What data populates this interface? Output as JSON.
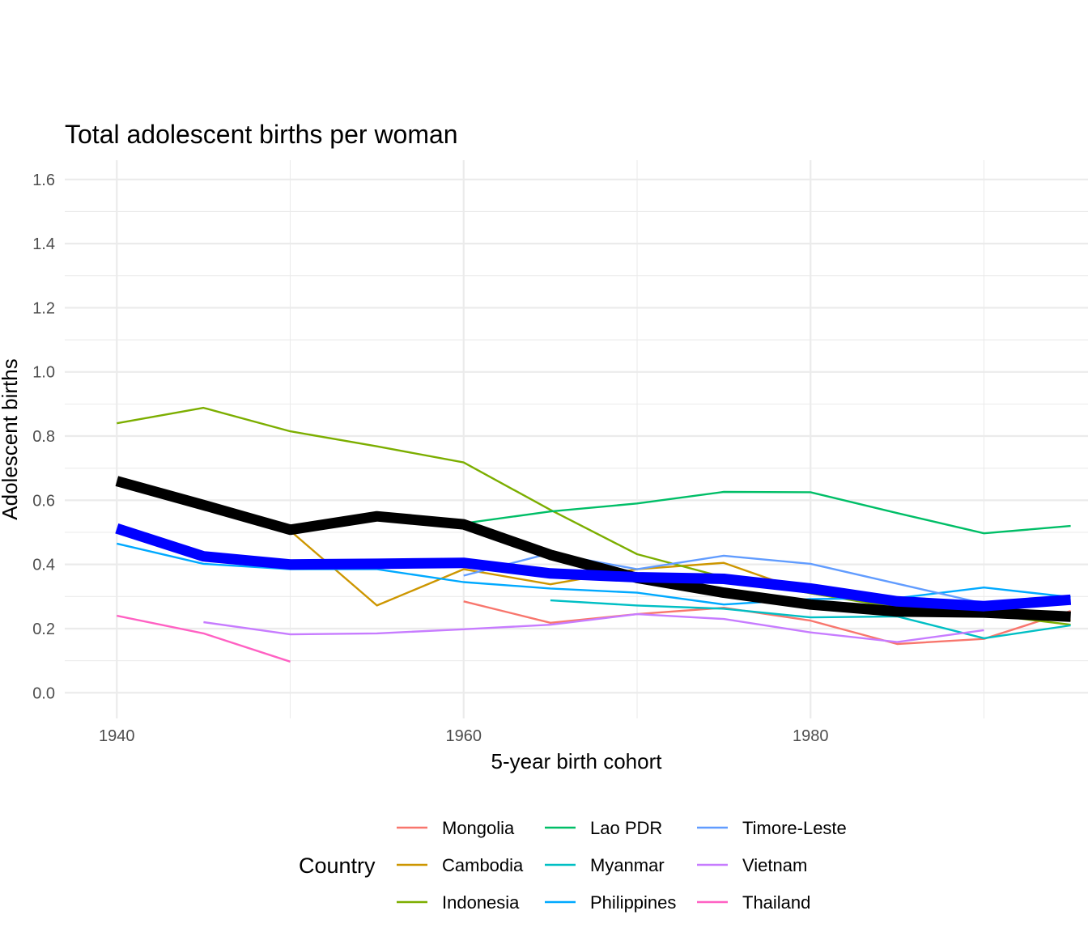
{
  "chart_data": {
    "type": "line",
    "title": "Total adolescent births per woman",
    "xlabel": "5-year birth cohort",
    "ylabel": "Adolescent births",
    "xlim": [
      1937,
      1996
    ],
    "ylim": [
      -0.08,
      1.66
    ],
    "x_ticks": [
      1940,
      1960,
      1980
    ],
    "y_ticks": [
      0.0,
      0.2,
      0.4,
      0.6,
      0.8,
      1.0,
      1.2,
      1.4,
      1.6
    ],
    "y_tick_labels": [
      "0.0",
      "0.2",
      "0.4",
      "0.6",
      "0.8",
      "1.0",
      "1.2",
      "1.4",
      "1.6"
    ],
    "grid": true,
    "legend": {
      "title": "Country",
      "position": "bottom"
    },
    "series": [
      {
        "name": "Mongolia",
        "color": "#F8766D",
        "x": [
          1960,
          1965,
          1970,
          1975,
          1980,
          1985,
          1990,
          1995
        ],
        "values": [
          0.285,
          0.218,
          0.245,
          0.265,
          0.225,
          0.152,
          0.168,
          0.255
        ]
      },
      {
        "name": "Cambodia",
        "color": "#CD9600",
        "x": [
          1950,
          1955,
          1960,
          1965,
          1970,
          1975,
          1980,
          1985,
          1990,
          1995
        ],
        "values": [
          0.505,
          0.272,
          0.385,
          0.338,
          0.385,
          0.405,
          0.31,
          0.268,
          0.245,
          0.225
        ]
      },
      {
        "name": "Indonesia",
        "color": "#7CAE00",
        "x": [
          1940,
          1945,
          1950,
          1955,
          1960,
          1965,
          1970,
          1975,
          1980,
          1985,
          1990,
          1995
        ],
        "values": [
          0.84,
          0.888,
          0.815,
          0.768,
          0.718,
          0.57,
          0.432,
          0.36,
          0.31,
          0.265,
          0.245,
          0.212
        ]
      },
      {
        "name": "Lao PDR",
        "color": "#00BE67",
        "x": [
          1960,
          1965,
          1970,
          1975,
          1980,
          1985,
          1990,
          1995
        ],
        "values": [
          0.528,
          0.565,
          0.59,
          0.626,
          0.625,
          0.56,
          0.497,
          0.52
        ]
      },
      {
        "name": "Myanmar",
        "color": "#00BFC4",
        "x": [
          1965,
          1970,
          1975,
          1980,
          1985,
          1990,
          1995
        ],
        "values": [
          0.288,
          0.272,
          0.262,
          0.235,
          0.238,
          0.17,
          0.21
        ]
      },
      {
        "name": "Philippines",
        "color": "#00A9FF",
        "x": [
          1940,
          1945,
          1950,
          1955,
          1960,
          1965,
          1970,
          1975,
          1980,
          1985,
          1990,
          1995
        ],
        "values": [
          0.465,
          0.402,
          0.385,
          0.385,
          0.345,
          0.325,
          0.312,
          0.275,
          0.292,
          0.295,
          0.328,
          0.298
        ]
      },
      {
        "name": "Timore-Leste",
        "color": "#619CFF",
        "x": [
          1960,
          1965,
          1970,
          1975,
          1980,
          1985,
          1990,
          1995
        ],
        "values": [
          0.365,
          0.435,
          0.385,
          0.427,
          0.402,
          0.34,
          0.278,
          0.29
        ]
      },
      {
        "name": "Vietnam",
        "color": "#C77CFF",
        "x": [
          1945,
          1950,
          1955,
          1960,
          1965,
          1970,
          1975,
          1980,
          1985,
          1990
        ],
        "values": [
          0.22,
          0.182,
          0.185,
          0.198,
          0.212,
          0.245,
          0.23,
          0.188,
          0.158,
          0.195
        ]
      },
      {
        "name": "Thailand",
        "color": "#FF61C3",
        "x": [
          1940,
          1945,
          1950
        ],
        "values": [
          0.24,
          0.185,
          0.097
        ]
      },
      {
        "color": "#000000",
        "x": [
          1940,
          1945,
          1950,
          1955,
          1960,
          1965,
          1970,
          1975,
          1980,
          1985,
          1990,
          1995
        ],
        "values": [
          0.66,
          0.585,
          0.508,
          0.55,
          0.525,
          0.43,
          0.358,
          0.312,
          0.275,
          0.253,
          0.25,
          0.237
        ]
      },
      {
        "color": "#0000FF",
        "x": [
          1940,
          1945,
          1950,
          1955,
          1960,
          1965,
          1970,
          1975,
          1980,
          1985,
          1990,
          1995
        ],
        "values": [
          0.512,
          0.425,
          0.4,
          0.402,
          0.405,
          0.372,
          0.36,
          0.355,
          0.325,
          0.285,
          0.27,
          0.29
        ]
      }
    ]
  }
}
